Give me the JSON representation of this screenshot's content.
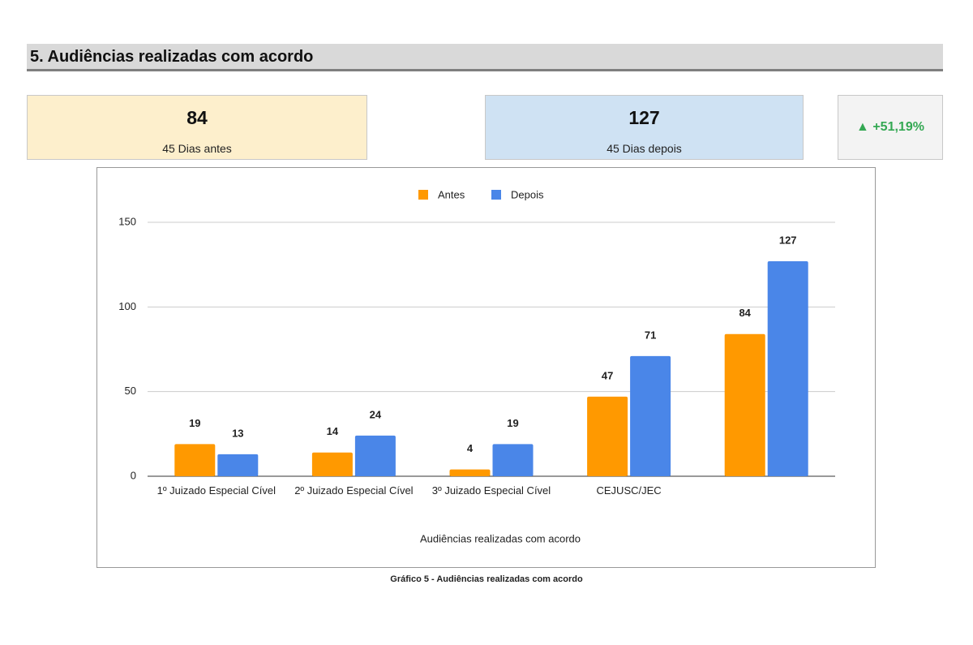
{
  "section": {
    "title": "5. Audiências realizadas com acordo"
  },
  "kpis": [
    {
      "value": "84",
      "label": "45 Dias antes"
    },
    {
      "value": "127",
      "label": "45 Dias depois"
    },
    {
      "value": "▲ +51,19%"
    }
  ],
  "chart_data": {
    "type": "bar",
    "categories": [
      "1º Juizado Especial Cível",
      "2º Juizado Especial Cível",
      "3º Juizado Especial Cível",
      "CEJUSC/JEC",
      null
    ],
    "series": [
      {
        "name": "Antes",
        "color": "#ff9900",
        "values": [
          19,
          14,
          4,
          47,
          84
        ]
      },
      {
        "name": "Depois",
        "color": "#4a86e8",
        "values": [
          13,
          24,
          19,
          71,
          127
        ]
      }
    ],
    "ylim": [
      0,
      150
    ],
    "yticks": [
      0,
      50,
      100,
      150
    ],
    "grid": true,
    "xlabel": "Audiências realizadas com acordo",
    "legend": "top"
  },
  "caption": "Gráfico 5 - Audiências realizadas com acordo"
}
